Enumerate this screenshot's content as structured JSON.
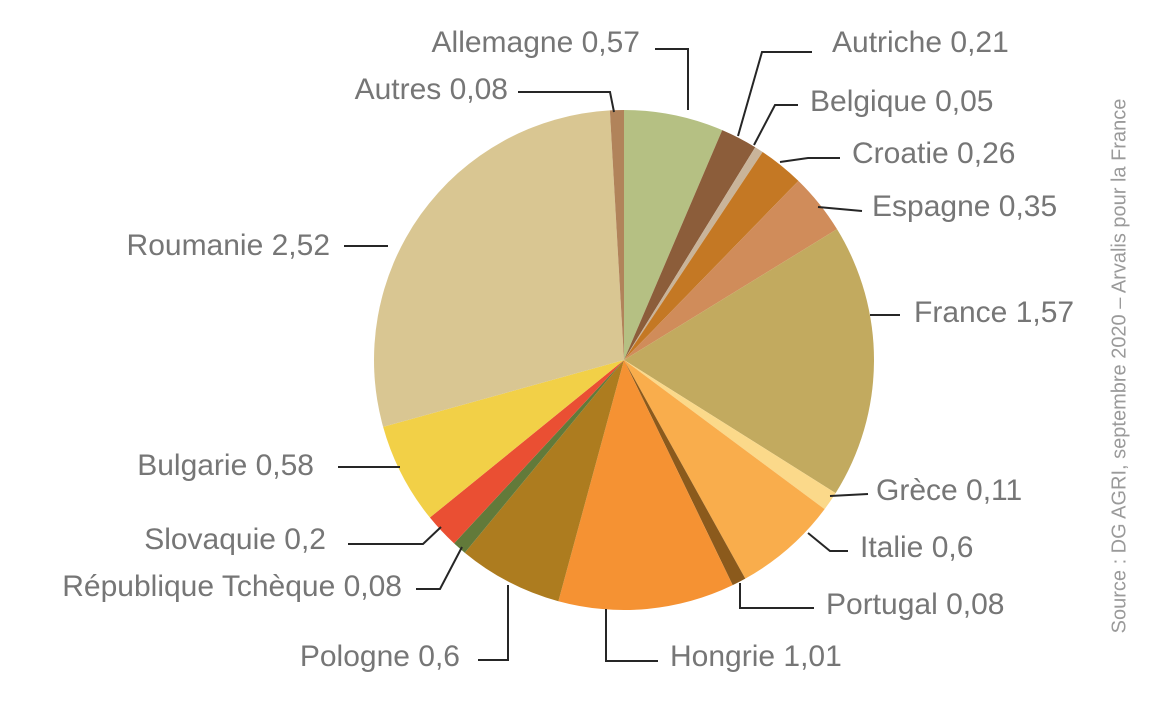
{
  "source": "Source : DG AGRI, septembre 2020 – Arvalis pour la France",
  "chart_data": {
    "type": "pie",
    "slices": [
      {
        "label": "Allemagne",
        "value": 0.57,
        "display": "Allemagne 0,57",
        "color": "#b5c083"
      },
      {
        "label": "Autriche",
        "value": 0.21,
        "display": "Autriche 0,21",
        "color": "#8c5d3a"
      },
      {
        "label": "Belgique",
        "value": 0.05,
        "display": "Belgique 0,05",
        "color": "#c9b49a"
      },
      {
        "label": "Croatie",
        "value": 0.26,
        "display": "Croatie 0,26",
        "color": "#c47824"
      },
      {
        "label": "Espagne",
        "value": 0.35,
        "display": "Espagne 0,35",
        "color": "#d08c5a"
      },
      {
        "label": "France",
        "value": 1.57,
        "display": "France 1,57",
        "color": "#c2aa5f"
      },
      {
        "label": "Grèce",
        "value": 0.11,
        "display": "Grèce 0,11",
        "color": "#fbd98a"
      },
      {
        "label": "Italie",
        "value": 0.6,
        "display": "Italie 0,6",
        "color": "#f9ad4c"
      },
      {
        "label": "Portugal",
        "value": 0.08,
        "display": "Portugal 0,08",
        "color": "#8b5a1c"
      },
      {
        "label": "Hongrie",
        "value": 1.01,
        "display": "Hongrie 1,01",
        "color": "#f59233"
      },
      {
        "label": "Pologne",
        "value": 0.6,
        "display": "Pologne 0,6",
        "color": "#ad7c1f"
      },
      {
        "label": "République Tchèque",
        "value": 0.08,
        "display": "République Tchèque 0,08",
        "color": "#627a3a"
      },
      {
        "label": "Slovaquie",
        "value": 0.2,
        "display": "Slovaquie 0,2",
        "color": "#ea4f33"
      },
      {
        "label": "Bulgarie",
        "value": 0.58,
        "display": "Bulgarie 0,58",
        "color": "#f2d047"
      },
      {
        "label": "Roumanie",
        "value": 2.52,
        "display": "Roumanie 2,52",
        "color": "#d9c692"
      },
      {
        "label": "Autres",
        "value": 0.08,
        "display": "Autres 0,08",
        "color": "#b1835a"
      }
    ]
  }
}
